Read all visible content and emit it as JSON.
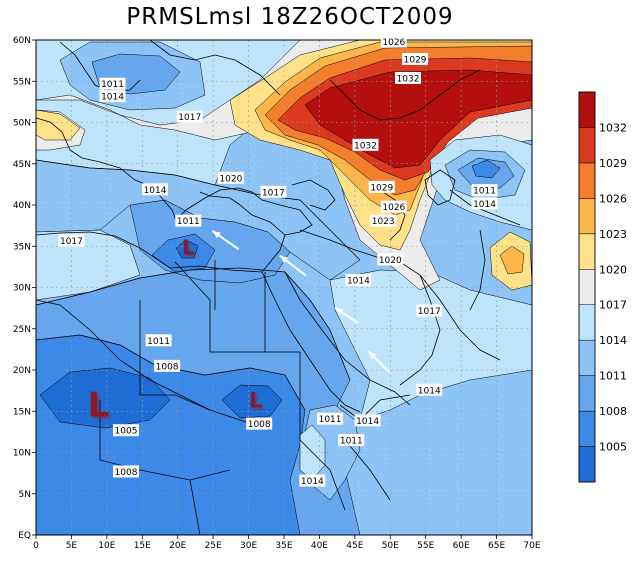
{
  "title": "PRMSLmsl 18Z26OCT2009",
  "axes": {
    "x_ticks": [
      "0",
      "5E",
      "10E",
      "15E",
      "20E",
      "25E",
      "30E",
      "35E",
      "40E",
      "45E",
      "50E",
      "55E",
      "60E",
      "65E",
      "70E"
    ],
    "y_ticks": [
      "EQ",
      "5N",
      "10N",
      "15N",
      "20N",
      "25N",
      "30N",
      "35N",
      "40N",
      "45N",
      "50N",
      "55N",
      "60N"
    ]
  },
  "colorbar": {
    "levels": [
      "1005",
      "1008",
      "1011",
      "1014",
      "1017",
      "1020",
      "1023",
      "1026",
      "1029",
      "1032"
    ],
    "colors": [
      "#1f6ed6",
      "#3d89e8",
      "#66a6ef",
      "#8ec3f5",
      "#bde4fb",
      "#ececec",
      "#fde28a",
      "#fdb64a",
      "#f37e2c",
      "#dc3a20",
      "#b40f0f"
    ]
  },
  "isobar_labels": [
    {
      "text": "1026",
      "lon": 50.5,
      "lat": 59.8
    },
    {
      "text": "1029",
      "lon": 53.5,
      "lat": 57.7
    },
    {
      "text": "1032",
      "lon": 52.5,
      "lat": 55.4
    },
    {
      "text": "1011",
      "lon": 10.8,
      "lat": 54.7
    },
    {
      "text": "1014",
      "lon": 10.8,
      "lat": 53.2
    },
    {
      "text": "1017",
      "lon": 21.7,
      "lat": 50.7
    },
    {
      "text": "1032",
      "lon": 46.5,
      "lat": 47.3
    },
    {
      "text": "1020",
      "lon": 27.5,
      "lat": 43.3
    },
    {
      "text": "1017",
      "lon": 33.5,
      "lat": 41.6
    },
    {
      "text": "1014",
      "lon": 16.8,
      "lat": 41.9
    },
    {
      "text": "1029",
      "lon": 48.8,
      "lat": 42.2
    },
    {
      "text": "1011",
      "lon": 63.3,
      "lat": 41.8
    },
    {
      "text": "1014",
      "lon": 63.3,
      "lat": 40.2
    },
    {
      "text": "1026",
      "lon": 50.5,
      "lat": 39.8
    },
    {
      "text": "1011",
      "lon": 21.5,
      "lat": 38.1
    },
    {
      "text": "1023",
      "lon": 49.0,
      "lat": 38.1
    },
    {
      "text": "1017",
      "lon": 5.0,
      "lat": 35.7
    },
    {
      "text": "1020",
      "lon": 50.0,
      "lat": 33.4
    },
    {
      "text": "1014",
      "lon": 45.5,
      "lat": 30.9
    },
    {
      "text": "1017",
      "lon": 55.5,
      "lat": 27.2
    },
    {
      "text": "1011",
      "lon": 17.3,
      "lat": 23.6
    },
    {
      "text": "1008",
      "lon": 18.5,
      "lat": 20.5
    },
    {
      "text": "1014",
      "lon": 55.5,
      "lat": 17.6
    },
    {
      "text": "1005",
      "lon": 12.7,
      "lat": 12.7
    },
    {
      "text": "1008",
      "lon": 31.5,
      "lat": 13.5
    },
    {
      "text": "1011",
      "lon": 41.5,
      "lat": 14.1
    },
    {
      "text": "1014",
      "lon": 46.8,
      "lat": 13.9
    },
    {
      "text": "1011",
      "lon": 44.5,
      "lat": 11.5
    },
    {
      "text": "1008",
      "lon": 12.7,
      "lat": 7.7
    },
    {
      "text": "1014",
      "lon": 39.0,
      "lat": 6.6
    }
  ],
  "lows": [
    {
      "text": "L",
      "lon": 21.5,
      "lat": 35.0,
      "size": 20
    },
    {
      "text": "L",
      "lon": 31.0,
      "lat": 16.5,
      "size": 21
    },
    {
      "text": "L",
      "lon": 8.8,
      "lat": 16.0,
      "size": 34
    }
  ],
  "highs": [],
  "wind_arrows": [
    {
      "from": [
        28.5,
        34.7
      ],
      "to": [
        25.0,
        36.8
      ]
    },
    {
      "from": [
        38.0,
        31.5
      ],
      "to": [
        34.5,
        33.8
      ]
    },
    {
      "from": [
        45.3,
        25.8
      ],
      "to": [
        42.3,
        27.5
      ]
    },
    {
      "from": [
        49.8,
        19.8
      ],
      "to": [
        47.0,
        22.2
      ]
    }
  ]
}
